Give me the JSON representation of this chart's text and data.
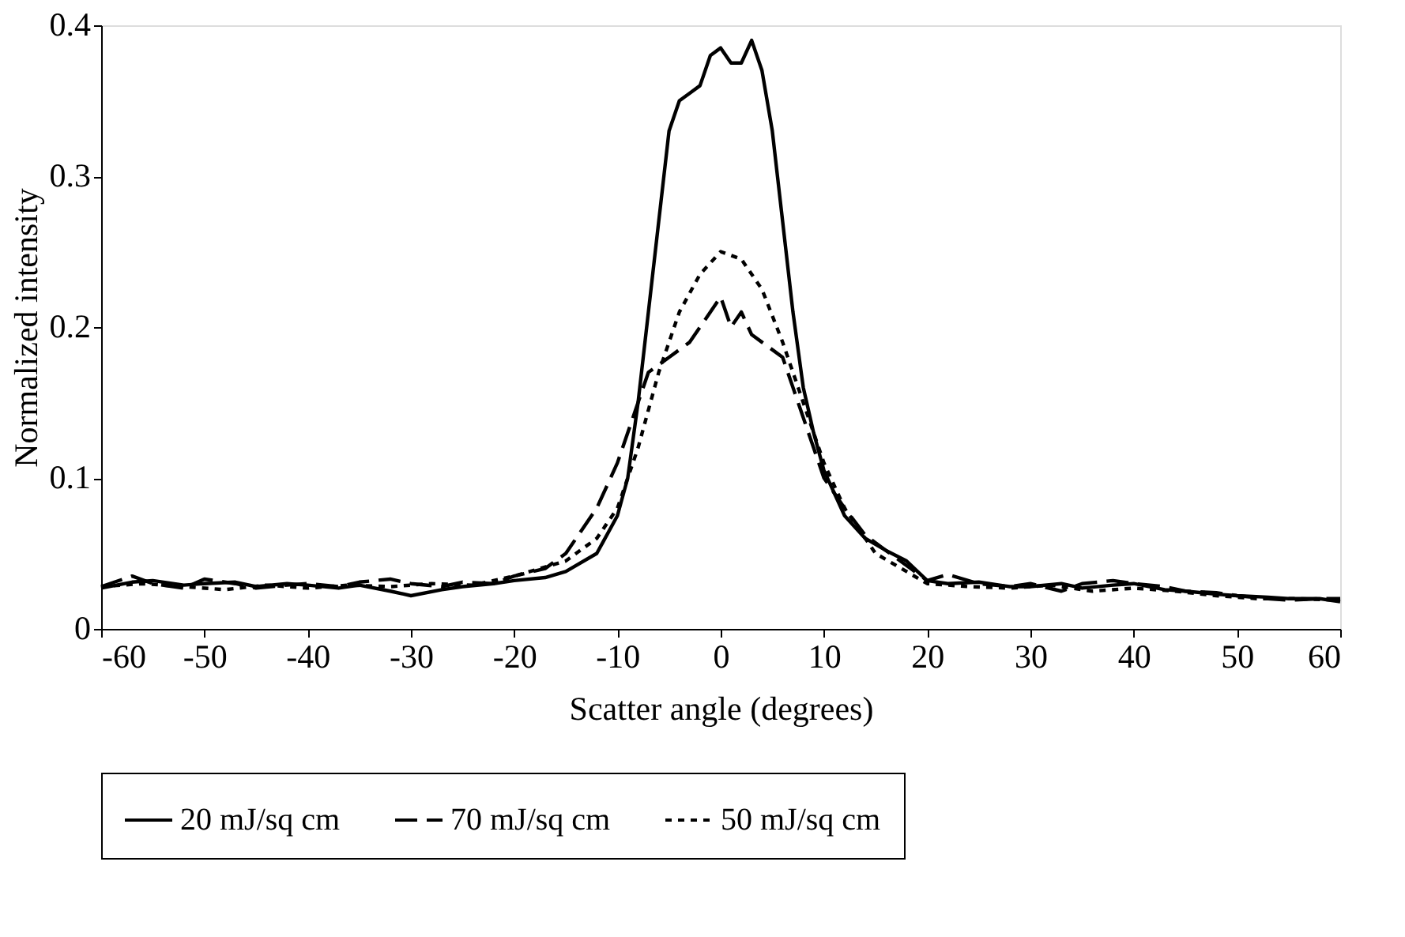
{
  "chart_data": {
    "type": "line",
    "xlabel": "Scatter angle (degrees)",
    "ylabel": "Normalized intensity",
    "xlim": [
      -60,
      60
    ],
    "xticks": [
      -60,
      -50,
      -40,
      -30,
      -20,
      -10,
      0,
      10,
      20,
      30,
      40,
      50,
      60
    ],
    "ylim": [
      0,
      0.4
    ],
    "yticks": [
      0,
      0.1,
      0.2,
      0.3,
      0.4
    ],
    "grid": false,
    "legend": "bottom",
    "series": [
      {
        "name": "20 mJ/sq cm",
        "color": "#000000",
        "line_style": "solid",
        "x": [
          -60,
          -57,
          -55,
          -52,
          -50,
          -47,
          -45,
          -42,
          -40,
          -37,
          -35,
          -32,
          -30,
          -27,
          -25,
          -22,
          -20,
          -17,
          -15,
          -12,
          -10,
          -9,
          -8,
          -7,
          -6,
          -5,
          -4,
          -3,
          -2,
          -1,
          0,
          1,
          2,
          3,
          4,
          5,
          6,
          7,
          8,
          9,
          10,
          12,
          14,
          16,
          18,
          20,
          22,
          25,
          28,
          30,
          33,
          35,
          38,
          40,
          43,
          45,
          48,
          50,
          53,
          55,
          58,
          60
        ],
        "values": [
          0.027,
          0.031,
          0.032,
          0.029,
          0.03,
          0.031,
          0.028,
          0.03,
          0.029,
          0.027,
          0.029,
          0.025,
          0.022,
          0.026,
          0.028,
          0.03,
          0.032,
          0.034,
          0.038,
          0.05,
          0.075,
          0.1,
          0.15,
          0.21,
          0.27,
          0.33,
          0.35,
          0.355,
          0.36,
          0.38,
          0.385,
          0.375,
          0.375,
          0.39,
          0.37,
          0.33,
          0.27,
          0.21,
          0.16,
          0.13,
          0.105,
          0.075,
          0.06,
          0.052,
          0.045,
          0.032,
          0.03,
          0.031,
          0.028,
          0.028,
          0.03,
          0.027,
          0.029,
          0.03,
          0.026,
          0.025,
          0.023,
          0.022,
          0.021,
          0.02,
          0.02,
          0.018
        ]
      },
      {
        "name": "70 mJ/sq cm",
        "color": "#000000",
        "line_style": "dashed",
        "x": [
          -60,
          -57,
          -55,
          -52,
          -50,
          -47,
          -45,
          -42,
          -40,
          -37,
          -35,
          -32,
          -30,
          -27,
          -25,
          -22,
          -20,
          -17,
          -15,
          -12,
          -10,
          -8,
          -7,
          -5,
          -3,
          -2,
          -1,
          0,
          1,
          2,
          3,
          4,
          5,
          6,
          7,
          8,
          9,
          10,
          12,
          14,
          16,
          18,
          20,
          22,
          25,
          28,
          30,
          33,
          35,
          38,
          40,
          43,
          45,
          48,
          50,
          53,
          55,
          58,
          60
        ],
        "values": [
          0.028,
          0.035,
          0.03,
          0.027,
          0.033,
          0.03,
          0.027,
          0.029,
          0.03,
          0.028,
          0.031,
          0.033,
          0.03,
          0.028,
          0.031,
          0.03,
          0.035,
          0.04,
          0.05,
          0.08,
          0.11,
          0.15,
          0.17,
          0.18,
          0.19,
          0.2,
          0.21,
          0.22,
          0.2,
          0.21,
          0.195,
          0.19,
          0.185,
          0.18,
          0.16,
          0.14,
          0.12,
          0.1,
          0.08,
          0.062,
          0.052,
          0.042,
          0.032,
          0.036,
          0.03,
          0.028,
          0.03,
          0.025,
          0.03,
          0.032,
          0.03,
          0.028,
          0.025,
          0.024,
          0.022,
          0.02,
          0.019,
          0.02,
          0.02
        ]
      },
      {
        "name": "50 mJ/sq cm",
        "color": "#000000",
        "line_style": "dotted",
        "x": [
          -60,
          -56,
          -52,
          -48,
          -44,
          -40,
          -36,
          -32,
          -28,
          -24,
          -20,
          -15,
          -12,
          -10,
          -8,
          -6,
          -4,
          -2,
          0,
          2,
          4,
          6,
          8,
          10,
          12,
          15,
          20,
          24,
          28,
          32,
          36,
          40,
          44,
          48,
          52,
          56,
          60
        ],
        "values": [
          0.028,
          0.03,
          0.028,
          0.026,
          0.029,
          0.027,
          0.029,
          0.028,
          0.03,
          0.029,
          0.035,
          0.045,
          0.06,
          0.08,
          0.12,
          0.17,
          0.21,
          0.235,
          0.25,
          0.245,
          0.225,
          0.19,
          0.15,
          0.11,
          0.08,
          0.05,
          0.03,
          0.028,
          0.027,
          0.029,
          0.025,
          0.027,
          0.025,
          0.022,
          0.02,
          0.02,
          0.019
        ]
      }
    ]
  }
}
